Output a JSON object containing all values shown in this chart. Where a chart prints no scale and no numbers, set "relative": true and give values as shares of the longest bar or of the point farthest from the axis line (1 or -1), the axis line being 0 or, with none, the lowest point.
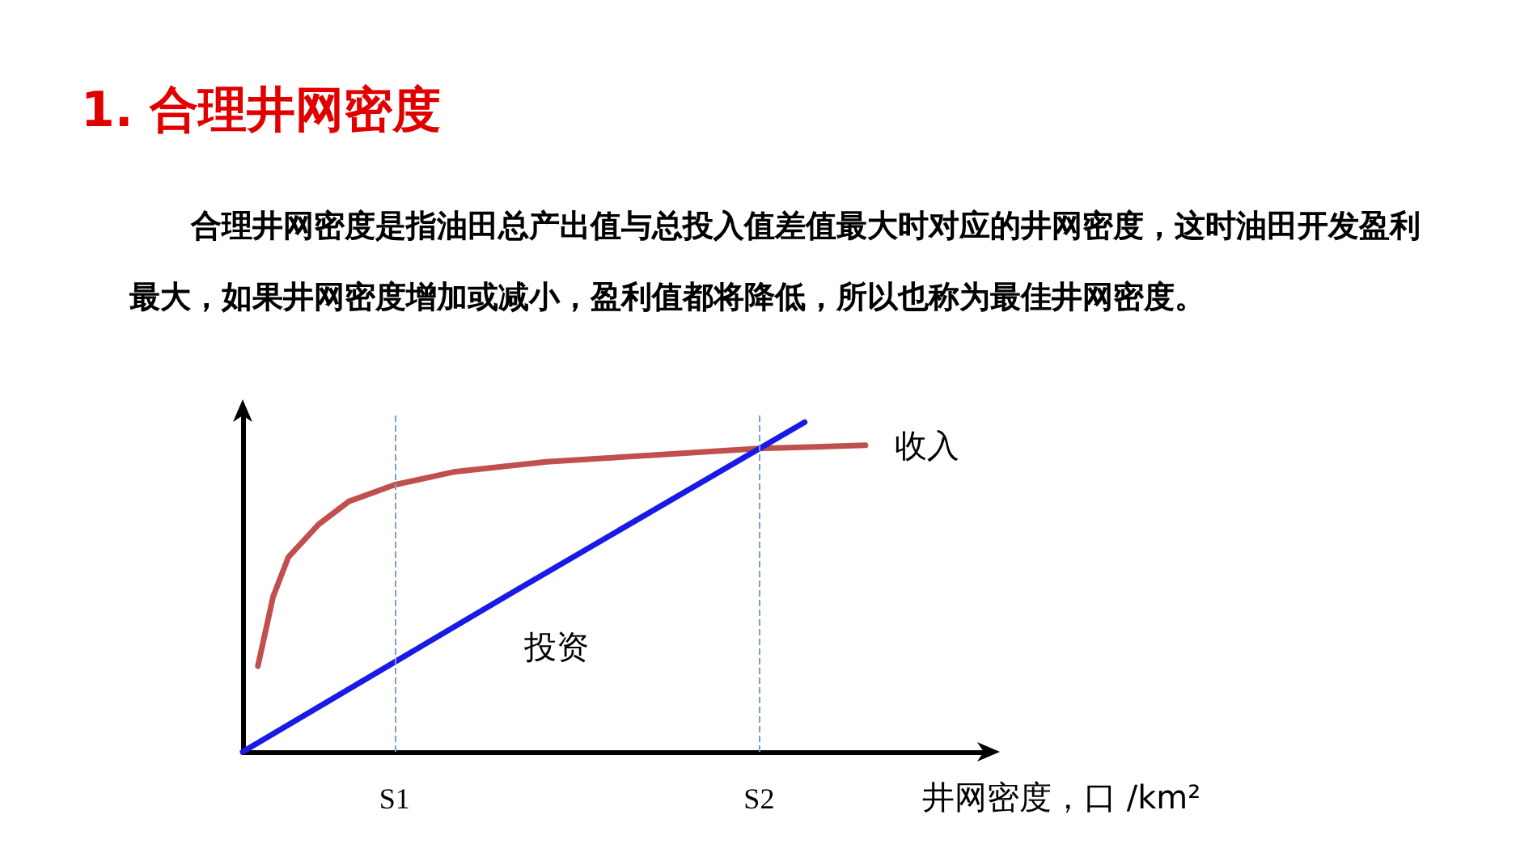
{
  "chart_data": {
    "type": "line",
    "title": "1. 合理井网密度",
    "subtitle": "合理井网密度是指油田总产出值与总投入值差值最大时对应的井网密度，这时油田开发盈利最大，如果井网密度增加或减小，盈利值都将降低，所以也称为最佳井网密度。",
    "xlabel": "井网密度，口 /km²",
    "relative": true,
    "grid": false,
    "legend": false,
    "marker": "none",
    "line_style": "solid",
    "categories": [
      null,
      null,
      null,
      null,
      null,
      null,
      null,
      null,
      null,
      null,
      "S1",
      null,
      null,
      null,
      null,
      null,
      null,
      null,
      null,
      null,
      null,
      null,
      null,
      null,
      null,
      null,
      null,
      null,
      null,
      null,
      null,
      null,
      null,
      null,
      "S2",
      null,
      null,
      null,
      null,
      null,
      null,
      null,
      null,
      null,
      null,
      null,
      null,
      null,
      null,
      null
    ],
    "series": [
      {
        "name": "收入",
        "color": "#c0504d",
        "values": [
          null,
          0.26,
          0.47,
          0.59,
          null,
          0.69,
          null,
          0.76,
          null,
          null,
          0.81,
          null,
          null,
          null,
          0.85,
          null,
          null,
          null,
          null,
          null,
          0.88,
          null,
          null,
          null,
          null,
          null,
          null,
          0.9,
          null,
          null,
          null,
          null,
          null,
          null,
          0.92,
          null,
          null,
          null,
          null,
          null,
          null,
          0.93,
          null,
          null,
          null,
          null,
          null,
          null,
          null,
          null
        ]
      },
      {
        "name": "投资",
        "color": "#1a1ae6",
        "values": [
          0,
          null,
          null,
          null,
          null,
          null,
          null,
          null,
          null,
          null,
          null,
          null,
          null,
          null,
          null,
          null,
          null,
          null,
          0.49,
          null,
          null,
          null,
          null,
          null,
          null,
          null,
          null,
          null,
          null,
          null,
          null,
          null,
          null,
          null,
          null,
          null,
          null,
          1,
          null,
          null,
          null,
          null,
          null,
          null,
          null,
          null,
          null,
          null,
          null,
          null
        ]
      }
    ],
    "ref_lines": [
      {
        "axis": "x",
        "value": "S1",
        "color": "#7f9fbf",
        "line_style": "dashed"
      },
      {
        "axis": "x",
        "value": "S2",
        "color": "#7f9fbf",
        "line_style": "dashed"
      }
    ]
  }
}
